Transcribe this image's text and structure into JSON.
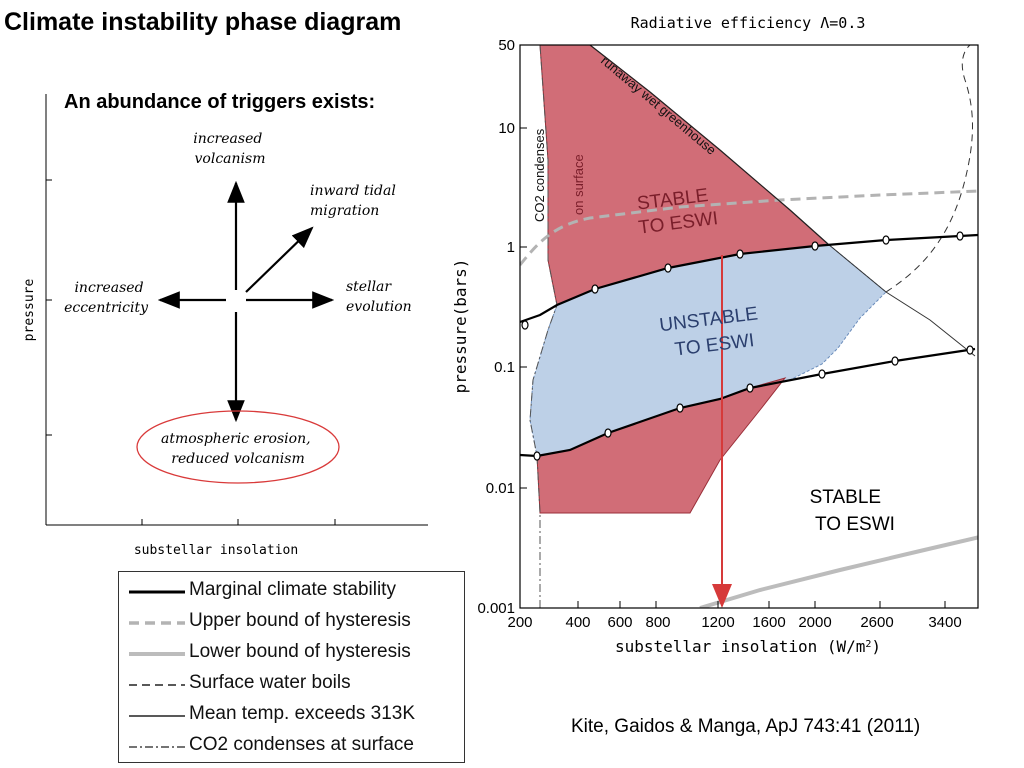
{
  "slide": {
    "title": "Climate instability phase diagram",
    "subtitle": "An abundance of triggers exists:",
    "citation": "Kite, Gaidos & Manga, ApJ 743:41 (2011)"
  },
  "schematic": {
    "xlabel": "substellar insolation",
    "ylabel": "pressure",
    "triggers": {
      "up": [
        "increased",
        "volcanism"
      ],
      "upper_right": [
        "inward tidal",
        "migration"
      ],
      "right": [
        "stellar",
        "evolution"
      ],
      "left": [
        "increased",
        "eccentricity"
      ],
      "down": [
        "atmospheric erosion,",
        "reduced volcanism"
      ]
    },
    "highlight_color": "#d93a3a"
  },
  "phase_plot": {
    "title": "Radiative efficiency Λ=0.3",
    "xlabel": "substellar insolation (W/m",
    "xlabel_sup": "2",
    "xlabel_end": ")",
    "ylabel": "pressure(bars)",
    "x_ticks": [
      "200",
      "400",
      "600",
      "800",
      "1200",
      "1600",
      "2000",
      "2600",
      "3400"
    ],
    "y_ticks": [
      "50",
      "10",
      "1",
      "0.1",
      "0.01",
      "0.001"
    ],
    "region_labels": {
      "stable_upper": [
        "STABLE",
        "TO ESWI"
      ],
      "unstable": [
        "UNSTABLE",
        "TO ESWI"
      ],
      "stable_lower": [
        "STABLE",
        "TO ESWI"
      ]
    },
    "curve_labels": {
      "runaway": "runaway wet greenhouse",
      "co2_condenses": "CO2 condenses",
      "on_surface": "on surface"
    },
    "colors": {
      "stable": "#c9545f",
      "unstable": "#b9cde6",
      "arrow": "#d63a3a"
    }
  },
  "legend": {
    "items": [
      {
        "label": "Marginal climate stability"
      },
      {
        "label": "Upper bound of hysteresis"
      },
      {
        "label": "Lower bound of hysteresis"
      },
      {
        "label": "Surface water boils"
      },
      {
        "label": "Mean temp. exceeds 313K"
      },
      {
        "label": "CO2 condenses at surface"
      }
    ]
  }
}
